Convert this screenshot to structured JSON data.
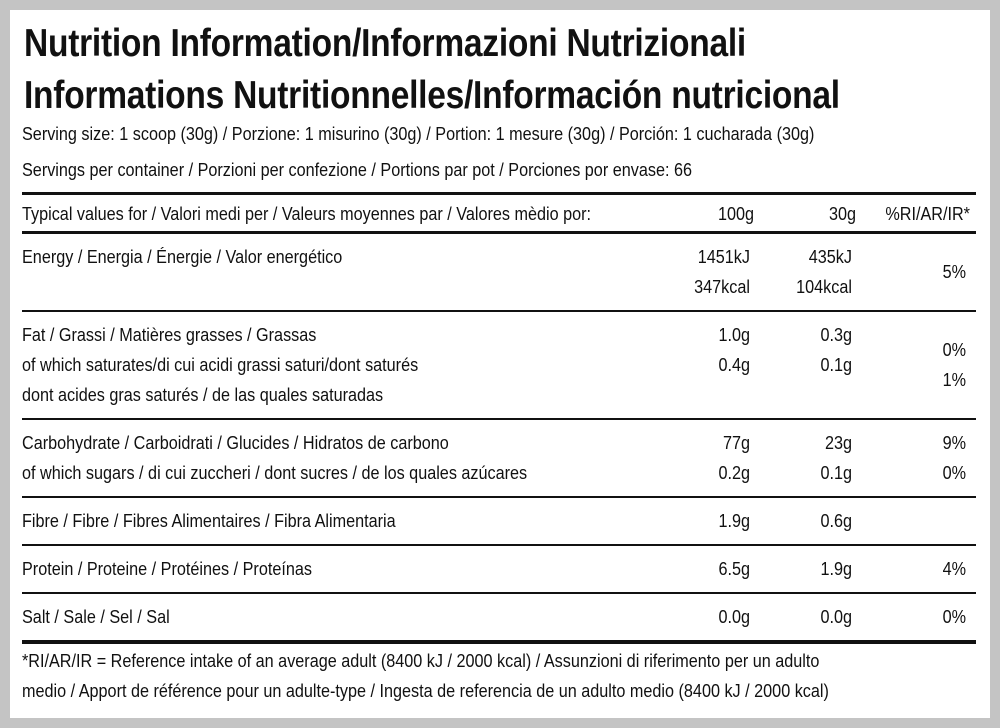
{
  "title": [
    "Nutrition Information/Informazioni Nutrizionali",
    "Informations Nutritionnelles/Información nutricional"
  ],
  "serving_size": "Serving size: 1 scoop (30g) / Porzione: 1 misurino (30g) / Portion: 1 mesure (30g) / Porción: 1 cucharada (30g)",
  "servings": "Servings per container / Porzioni per confezione / Portions par pot / Porciones por envase: 66",
  "table": {
    "header": [
      "Typical values for / Valori medi per / Valeurs moyennes par / Valores mèdio por:",
      "100g",
      "30g",
      "%RI/AR/IR*"
    ],
    "groups": [
      {
        "label": [
          "Energy / Energia / Énergie / Valor energético"
        ],
        "per_100g": [
          "1451kJ",
          "347kcal"
        ],
        "per_30g": [
          "435kJ",
          "104kcal"
        ],
        "ri": [
          "5%"
        ]
      },
      {
        "label": [
          "Fat / Grassi / Matières grasses / Grassas",
          "of which saturates/di cui acidi grassi saturi/dont saturés",
          "dont acides gras saturés / de las quales saturadas"
        ],
        "per_100g": [
          "1.0g",
          "0.4g"
        ],
        "per_30g": [
          "0.3g",
          "0.1g"
        ],
        "ri": [
          "0%",
          "1%"
        ]
      },
      {
        "label": [
          "Carbohydrate / Carboidrati / Glucides / Hidratos de carbono",
          "of which sugars / di cui zuccheri / dont sucres / de los quales azúcares"
        ],
        "per_100g": [
          "77g",
          "0.2g"
        ],
        "per_30g": [
          "23g",
          "0.1g"
        ],
        "ri": [
          "9%",
          "0%"
        ]
      },
      {
        "label": [
          "Fibre / Fibre / Fibres Alimentaires / Fibra Alimentaria"
        ],
        "per_100g": [
          "1.9g"
        ],
        "per_30g": [
          "0.6g"
        ],
        "ri": []
      },
      {
        "label": [
          "Protein / Proteine / Protéines / Proteínas"
        ],
        "per_100g": [
          "6.5g"
        ],
        "per_30g": [
          "1.9g"
        ],
        "ri": [
          "4%"
        ]
      },
      {
        "label": [
          "Salt / Sale / Sel / Sal"
        ],
        "per_100g": [
          "0.0g"
        ],
        "per_30g": [
          "0.0g"
        ],
        "ri": [
          "0%"
        ]
      }
    ]
  },
  "footnote": [
    "*RI/AR/IR = Reference intake of an average adult (8400 kJ / 2000 kcal)  / Assunzioni di riferimento per un adulto",
    "medio / Apport de référence pour un adulte-type / Ingesta de referencia de un adulto medio (8400 kJ / 2000 kcal)"
  ]
}
